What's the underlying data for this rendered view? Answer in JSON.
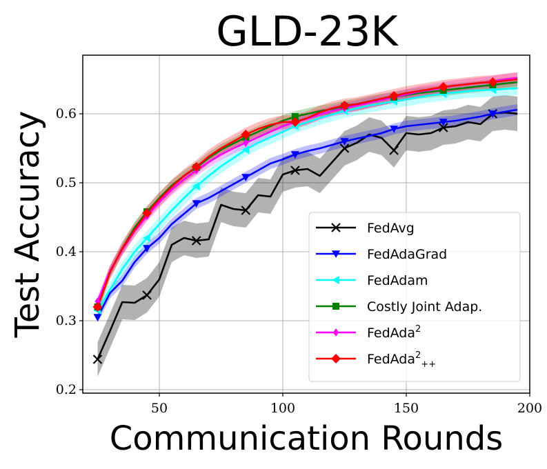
{
  "chart_data": {
    "type": "line",
    "title": "GLD-23K",
    "xlabel": "Communication Rounds",
    "ylabel": "Test Accuracy",
    "xlim": [
      19,
      200
    ],
    "ylim": [
      0.195,
      0.685
    ],
    "xticks": [
      50,
      100,
      150,
      200
    ],
    "yticks": [
      0.2,
      0.3,
      0.4,
      0.5,
      0.6
    ],
    "grid": true,
    "legend_position": "bottom-right",
    "x": [
      25,
      30,
      35,
      40,
      45,
      50,
      55,
      60,
      65,
      70,
      75,
      80,
      85,
      90,
      95,
      100,
      105,
      110,
      115,
      120,
      125,
      130,
      135,
      140,
      145,
      150,
      155,
      160,
      165,
      170,
      175,
      180,
      185,
      190,
      195
    ],
    "series": [
      {
        "name": "FedAvg",
        "color": "#000000",
        "marker": "x",
        "band": 0.025,
        "values": [
          0.244,
          0.285,
          0.327,
          0.326,
          0.337,
          0.36,
          0.41,
          0.42,
          0.416,
          0.418,
          0.468,
          0.462,
          0.46,
          0.482,
          0.48,
          0.512,
          0.518,
          0.52,
          0.51,
          0.53,
          0.55,
          0.558,
          0.57,
          0.565,
          0.547,
          0.572,
          0.57,
          0.572,
          0.58,
          0.582,
          0.588,
          0.585,
          0.6,
          0.602,
          0.6
        ]
      },
      {
        "name": "FedAdaGrad",
        "color": "#0000ff",
        "marker": "v",
        "band": 0.008,
        "values": [
          0.305,
          0.34,
          0.358,
          0.385,
          0.405,
          0.42,
          0.44,
          0.455,
          0.47,
          0.478,
          0.488,
          0.498,
          0.508,
          0.518,
          0.528,
          0.534,
          0.541,
          0.546,
          0.55,
          0.555,
          0.56,
          0.564,
          0.568,
          0.572,
          0.578,
          0.582,
          0.584,
          0.586,
          0.588,
          0.59,
          0.593,
          0.596,
          0.6,
          0.603,
          0.606
        ]
      },
      {
        "name": "FedAdam",
        "color": "#00ffff",
        "marker": "<",
        "band": 0.01,
        "values": [
          0.315,
          0.345,
          0.375,
          0.4,
          0.42,
          0.44,
          0.46,
          0.478,
          0.495,
          0.51,
          0.524,
          0.536,
          0.548,
          0.558,
          0.566,
          0.574,
          0.582,
          0.588,
          0.594,
          0.599,
          0.604,
          0.608,
          0.612,
          0.615,
          0.618,
          0.621,
          0.624,
          0.627,
          0.629,
          0.631,
          0.633,
          0.634,
          0.635,
          0.636,
          0.637
        ]
      },
      {
        "name": "Costly Joint Adap.",
        "color": "#008000",
        "marker": "s",
        "band": 0.008,
        "values": [
          0.32,
          0.37,
          0.405,
          0.435,
          0.458,
          0.478,
          0.496,
          0.51,
          0.522,
          0.536,
          0.548,
          0.557,
          0.566,
          0.574,
          0.582,
          0.59,
          0.596,
          0.6,
          0.604,
          0.607,
          0.611,
          0.614,
          0.618,
          0.621,
          0.624,
          0.627,
          0.63,
          0.632,
          0.634,
          0.636,
          0.638,
          0.64,
          0.642,
          0.644,
          0.646
        ]
      },
      {
        "name": "FedAda",
        "sup": "2",
        "sub": "",
        "color": "#ff00ff",
        "marker": "d",
        "band": 0.008,
        "values": [
          0.328,
          0.372,
          0.403,
          0.43,
          0.452,
          0.472,
          0.49,
          0.505,
          0.518,
          0.53,
          0.541,
          0.55,
          0.558,
          0.566,
          0.574,
          0.582,
          0.588,
          0.593,
          0.599,
          0.604,
          0.608,
          0.612,
          0.616,
          0.62,
          0.624,
          0.628,
          0.632,
          0.635,
          0.638,
          0.641,
          0.643,
          0.645,
          0.647,
          0.65,
          0.652
        ]
      },
      {
        "name": "FedAda",
        "sup": "2",
        "sub": "++",
        "color": "#ff0000",
        "marker": "D",
        "band": 0.01,
        "values": [
          0.32,
          0.37,
          0.405,
          0.432,
          0.456,
          0.476,
          0.494,
          0.51,
          0.523,
          0.538,
          0.55,
          0.56,
          0.57,
          0.578,
          0.584,
          0.588,
          0.588,
          0.594,
          0.602,
          0.608,
          0.612,
          0.614,
          0.618,
          0.622,
          0.626,
          0.63,
          0.633,
          0.636,
          0.639,
          0.641,
          0.643,
          0.645,
          0.646,
          0.648,
          0.65
        ]
      }
    ],
    "marker_indices": [
      0,
      4,
      8,
      12,
      16,
      20,
      24,
      28,
      32
    ]
  }
}
